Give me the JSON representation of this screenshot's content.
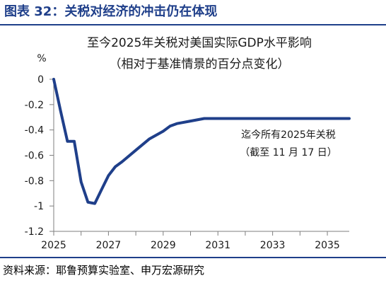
{
  "figure_title": "图表 32：关税对经济的冲击仍在体现",
  "source_text": "资料来源：耶鲁预算实验室、申万宏源研究",
  "chart_data": {
    "type": "line",
    "title": "至今2025年关税对美国实际GDP水平影响",
    "subtitle": "（相对于基准情景的百分点变化）",
    "ylabel": "%",
    "xlabel": "",
    "xlim": [
      2025,
      2035.8
    ],
    "ylim": [
      -1.2,
      0
    ],
    "x_ticks": [
      "2025",
      "2027",
      "2029",
      "2031",
      "2033",
      "2035"
    ],
    "y_ticks": [
      "0",
      "-0.2",
      "-0.4",
      "-0.6",
      "-0.8",
      "-1",
      "-1.2"
    ],
    "grid": false,
    "series": [
      {
        "color": "#1f3f8a",
        "x": [
          2025.0,
          2025.25,
          2025.5,
          2025.75,
          2026.0,
          2026.25,
          2026.5,
          2026.75,
          2027.0,
          2027.25,
          2027.5,
          2028.0,
          2028.5,
          2029.0,
          2029.25,
          2029.5,
          2030.0,
          2030.5,
          2031.0,
          2032.0,
          2033.0,
          2034.0,
          2035.0,
          2035.8
        ],
        "y": [
          0.0,
          -0.25,
          -0.49,
          -0.49,
          -0.81,
          -0.97,
          -0.98,
          -0.87,
          -0.76,
          -0.69,
          -0.65,
          -0.56,
          -0.47,
          -0.41,
          -0.37,
          -0.35,
          -0.33,
          -0.31,
          -0.31,
          -0.31,
          -0.31,
          -0.31,
          -0.31,
          -0.31
        ]
      }
    ],
    "annotations": [
      "迄今所有2025年关税",
      "（截至 11 月 17 日）"
    ],
    "colors": {
      "line": "#1f3f8a",
      "axis": "#7f7f7f",
      "title": "#1f3f8a"
    }
  }
}
